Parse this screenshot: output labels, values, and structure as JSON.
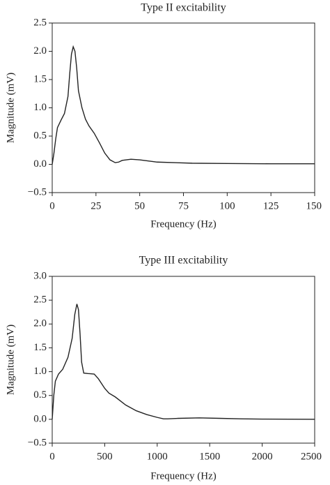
{
  "chart_data": [
    {
      "type": "line",
      "title": "Type II excitability",
      "xlabel": "Frequency (Hz)",
      "ylabel": "Magnitude (mV)",
      "x": [
        0,
        1,
        2,
        3,
        5,
        7,
        9,
        10,
        11,
        12,
        13,
        14,
        15,
        17,
        19,
        21,
        24,
        27,
        30,
        33,
        36,
        38,
        40,
        45,
        50,
        55,
        60,
        70,
        80,
        100,
        125,
        150
      ],
      "values": [
        0.0,
        0.2,
        0.45,
        0.65,
        0.78,
        0.9,
        1.2,
        1.6,
        1.95,
        2.08,
        2.0,
        1.7,
        1.3,
        1.0,
        0.8,
        0.68,
        0.55,
        0.38,
        0.2,
        0.08,
        0.03,
        0.04,
        0.07,
        0.09,
        0.08,
        0.06,
        0.04,
        0.03,
        0.02,
        0.015,
        0.01,
        0.01
      ],
      "color": "#222222",
      "xlim": [
        0,
        150
      ],
      "xticks": [
        0,
        25,
        50,
        75,
        100,
        125,
        150
      ],
      "ylim": [
        -0.5,
        2.5
      ],
      "yticks": [
        {
          "value": -0.5,
          "label": "−0.5"
        },
        {
          "value": 0,
          "label": "0.0"
        },
        0.5,
        {
          "value": 1,
          "label": "1.0"
        },
        1.5,
        {
          "value": 2,
          "label": "2.0"
        },
        2.5
      ]
    },
    {
      "type": "line",
      "title": "Type III excitability",
      "xlabel": "Frequency (Hz)",
      "ylabel": "Magnitude (mV)",
      "x": [
        0,
        15,
        30,
        60,
        100,
        150,
        190,
        215,
        235,
        250,
        265,
        280,
        300,
        340,
        400,
        440,
        500,
        540,
        600,
        700,
        800,
        900,
        1000,
        1060,
        1100,
        1200,
        1400,
        1600,
        1800,
        2000,
        2500
      ],
      "values": [
        0.0,
        0.5,
        0.8,
        0.95,
        1.05,
        1.3,
        1.7,
        2.2,
        2.42,
        2.3,
        1.8,
        1.2,
        0.97,
        0.96,
        0.95,
        0.85,
        0.65,
        0.55,
        0.47,
        0.3,
        0.18,
        0.1,
        0.04,
        0.01,
        0.01,
        0.02,
        0.03,
        0.02,
        0.01,
        0.005,
        0.0
      ],
      "color": "#222222",
      "xlim": [
        0,
        2500
      ],
      "xticks": [
        0,
        500,
        1000,
        1500,
        2000,
        2500
      ],
      "ylim": [
        -0.5,
        3
      ],
      "yticks": [
        {
          "value": -0.5,
          "label": "−0.5"
        },
        {
          "value": 0,
          "label": "0.0"
        },
        0.5,
        {
          "value": 1,
          "label": "1.0"
        },
        1.5,
        {
          "value": 2,
          "label": "2.0"
        },
        2.5,
        {
          "value": 3,
          "label": "3.0"
        }
      ]
    }
  ]
}
